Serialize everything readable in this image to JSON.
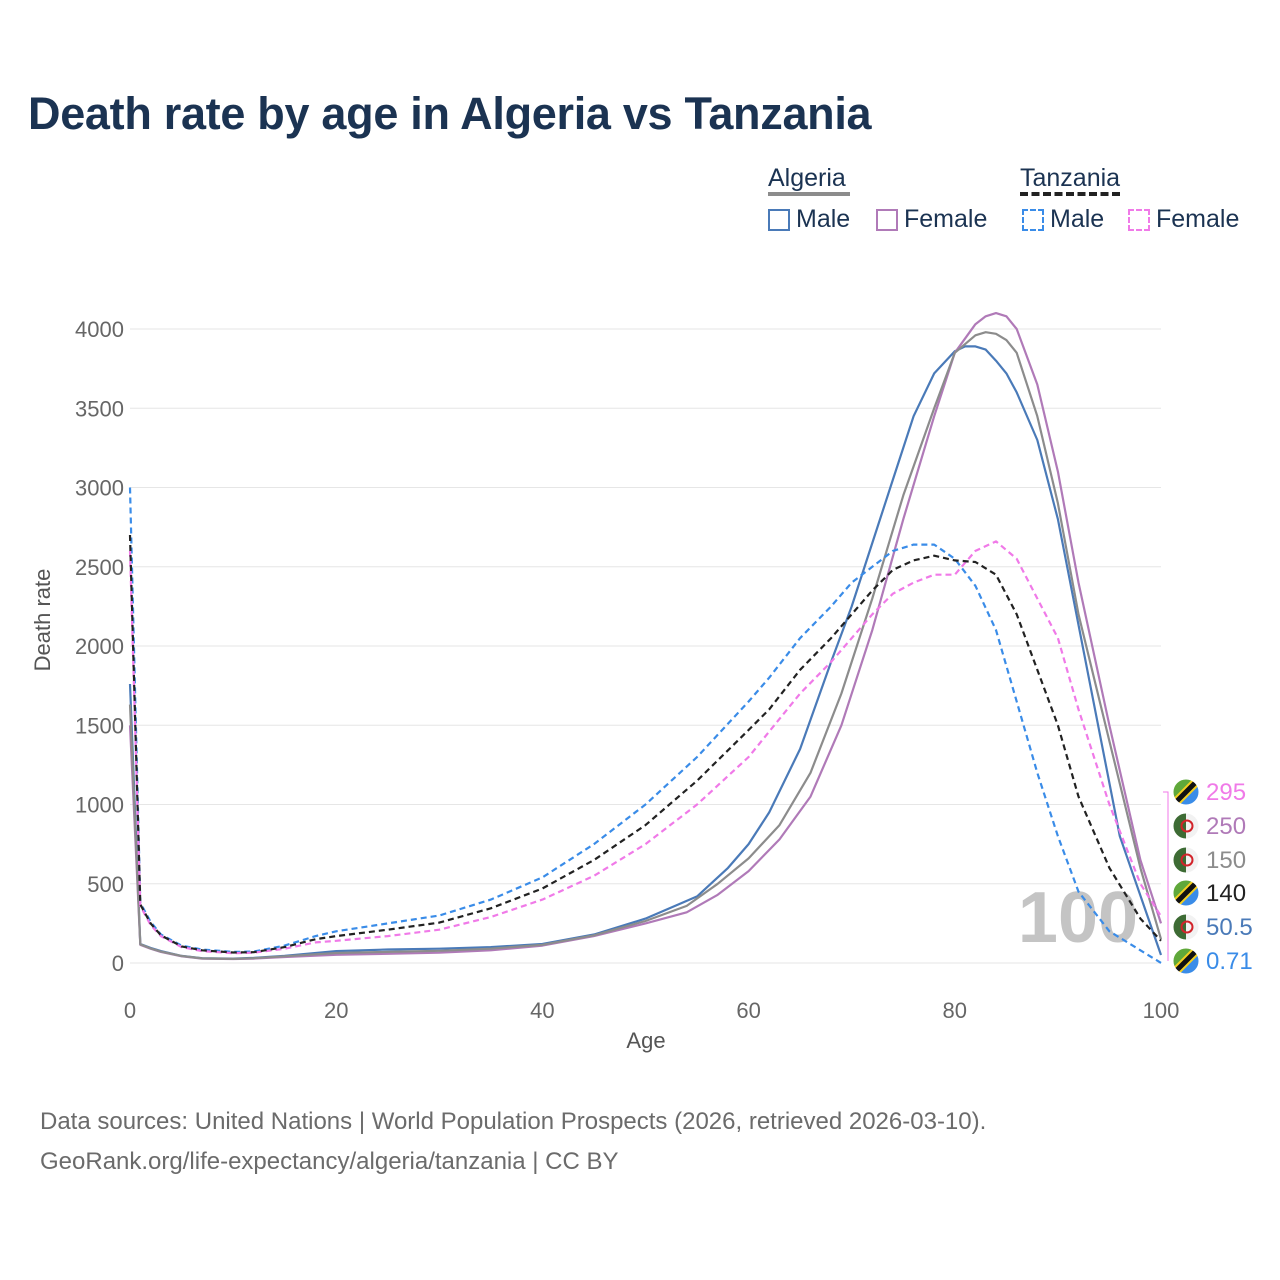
{
  "title": "Death rate by age in Algeria vs Tanzania",
  "legend": {
    "groups": [
      {
        "label": "Algeria",
        "line_color": "#8c8c8c",
        "line_style": "solid",
        "items": [
          {
            "label": "Male",
            "color": "#4a7ab8",
            "style": "solid"
          },
          {
            "label": "Female",
            "color": "#b07ab8",
            "style": "solid"
          }
        ]
      },
      {
        "label": "Tanzania",
        "line_color": "#222222",
        "line_style": "dashed",
        "items": [
          {
            "label": "Male",
            "color": "#3a8ce8",
            "style": "dashed"
          },
          {
            "label": "Female",
            "color": "#f07ae8",
            "style": "dashed"
          }
        ]
      }
    ]
  },
  "chart_data": {
    "type": "line",
    "title": "Death rate by age in Algeria vs Tanzania",
    "xlabel": "Age",
    "ylabel": "Death rate",
    "xlim": [
      0,
      100
    ],
    "ylim": [
      0,
      4200
    ],
    "xticks": [
      0,
      20,
      40,
      60,
      80,
      100
    ],
    "yticks": [
      0,
      500,
      1000,
      1500,
      2000,
      2500,
      3000,
      3500,
      4000
    ],
    "grid": true,
    "watermark": "100",
    "series": [
      {
        "name": "Algeria Male",
        "country": "Algeria",
        "sex": "Male",
        "color": "#4a7ab8",
        "dash": false,
        "x": [
          0,
          1,
          2,
          3,
          5,
          7,
          10,
          12,
          15,
          20,
          25,
          30,
          35,
          40,
          45,
          50,
          55,
          58,
          60,
          62,
          65,
          68,
          70,
          72,
          74,
          76,
          78,
          80,
          81,
          82,
          83,
          84,
          85,
          86,
          88,
          90,
          93,
          96,
          100
        ],
        "y": [
          1760,
          120,
          95,
          75,
          45,
          30,
          28,
          32,
          45,
          75,
          85,
          90,
          100,
          120,
          180,
          280,
          420,
          600,
          750,
          950,
          1350,
          1900,
          2250,
          2650,
          3050,
          3450,
          3720,
          3860,
          3890,
          3890,
          3870,
          3800,
          3720,
          3600,
          3300,
          2800,
          1800,
          800,
          50.5
        ]
      },
      {
        "name": "Algeria Female",
        "country": "Algeria",
        "sex": "Female",
        "color": "#b07ab8",
        "dash": false,
        "x": [
          0,
          1,
          2,
          3,
          5,
          7,
          10,
          12,
          15,
          20,
          25,
          30,
          35,
          40,
          45,
          50,
          54,
          57,
          60,
          63,
          66,
          69,
          72,
          75,
          78,
          80,
          82,
          83,
          84,
          85,
          86,
          88,
          90,
          92,
          95,
          98,
          100
        ],
        "y": [
          1500,
          115,
          90,
          70,
          42,
          28,
          25,
          28,
          38,
          52,
          58,
          65,
          80,
          110,
          170,
          250,
          320,
          430,
          580,
          780,
          1050,
          1500,
          2100,
          2800,
          3450,
          3850,
          4030,
          4080,
          4100,
          4080,
          4000,
          3650,
          3100,
          2400,
          1500,
          650,
          250
        ]
      },
      {
        "name": "Algeria Both",
        "country": "Algeria",
        "sex": "Both",
        "color": "#8c8c8c",
        "dash": false,
        "x": [
          0,
          1,
          2,
          3,
          5,
          7,
          10,
          12,
          15,
          20,
          25,
          30,
          35,
          40,
          45,
          50,
          54,
          57,
          60,
          63,
          66,
          69,
          72,
          75,
          78,
          80,
          82,
          83,
          84,
          85,
          86,
          88,
          90,
          92,
          95,
          98,
          100
        ],
        "y": [
          1630,
          118,
          92,
          72,
          44,
          29,
          26,
          30,
          42,
          63,
          70,
          77,
          90,
          115,
          175,
          265,
          360,
          500,
          660,
          870,
          1200,
          1700,
          2300,
          2950,
          3500,
          3850,
          3960,
          3980,
          3970,
          3930,
          3850,
          3450,
          2900,
          2200,
          1400,
          600,
          150
        ]
      },
      {
        "name": "Tanzania Male",
        "country": "Tanzania",
        "sex": "Male",
        "color": "#3a8ce8",
        "dash": true,
        "x": [
          0,
          1,
          2,
          3,
          5,
          7,
          10,
          12,
          15,
          18,
          20,
          25,
          30,
          35,
          40,
          45,
          50,
          55,
          60,
          62,
          65,
          68,
          70,
          72,
          74,
          76,
          78,
          80,
          82,
          84,
          86,
          88,
          90,
          92,
          95,
          98,
          100
        ],
        "y": [
          3000,
          380,
          260,
          180,
          110,
          85,
          70,
          72,
          110,
          170,
          200,
          250,
          300,
          400,
          540,
          750,
          1000,
          1300,
          1650,
          1800,
          2050,
          2250,
          2400,
          2500,
          2600,
          2640,
          2640,
          2550,
          2380,
          2100,
          1650,
          1200,
          800,
          450,
          200,
          80,
          0.71
        ]
      },
      {
        "name": "Tanzania Female",
        "country": "Tanzania",
        "sex": "Female",
        "color": "#f07ae8",
        "dash": true,
        "x": [
          0,
          1,
          2,
          3,
          5,
          7,
          10,
          12,
          15,
          18,
          20,
          25,
          30,
          35,
          40,
          45,
          50,
          55,
          60,
          65,
          68,
          70,
          72,
          74,
          76,
          78,
          80,
          82,
          84,
          86,
          88,
          90,
          92,
          95,
          98,
          100
        ],
        "y": [
          2600,
          360,
          240,
          170,
          100,
          75,
          62,
          65,
          90,
          130,
          140,
          170,
          210,
          290,
          400,
          550,
          750,
          1000,
          1300,
          1700,
          1900,
          2050,
          2200,
          2330,
          2400,
          2450,
          2450,
          2600,
          2660,
          2550,
          2300,
          2050,
          1600,
          1000,
          500,
          295
        ]
      },
      {
        "name": "Tanzania Both",
        "country": "Tanzania",
        "sex": "Both",
        "color": "#222222",
        "dash": true,
        "x": [
          0,
          1,
          2,
          3,
          5,
          7,
          10,
          12,
          15,
          18,
          20,
          25,
          30,
          35,
          40,
          45,
          50,
          55,
          60,
          62,
          65,
          68,
          70,
          72,
          74,
          76,
          78,
          80,
          82,
          84,
          86,
          88,
          90,
          92,
          95,
          98,
          100
        ],
        "y": [
          2700,
          370,
          250,
          175,
          105,
          80,
          66,
          68,
          100,
          150,
          170,
          210,
          255,
          345,
          470,
          650,
          870,
          1150,
          1470,
          1600,
          1850,
          2050,
          2200,
          2350,
          2480,
          2540,
          2570,
          2540,
          2530,
          2450,
          2200,
          1850,
          1500,
          1050,
          600,
          280,
          140
        ]
      }
    ],
    "end_labels": [
      {
        "value": "295",
        "country": "Tanzania",
        "color": "#f07ae8"
      },
      {
        "value": "250",
        "country": "Algeria",
        "color": "#b07ab8"
      },
      {
        "value": "150",
        "country": "Algeria",
        "color": "#8c8c8c"
      },
      {
        "value": "140",
        "country": "Tanzania",
        "color": "#222222"
      },
      {
        "value": "50.5",
        "country": "Algeria",
        "color": "#4a7ab8"
      },
      {
        "value": "0.71",
        "country": "Tanzania",
        "color": "#3a8ce8"
      }
    ]
  },
  "footer": {
    "line1": "Data sources: United Nations | World Population Prospects (2026, retrieved 2026-03-10).",
    "line2": "GeoRank.org/life-expectancy/algeria/tanzania | CC BY"
  }
}
